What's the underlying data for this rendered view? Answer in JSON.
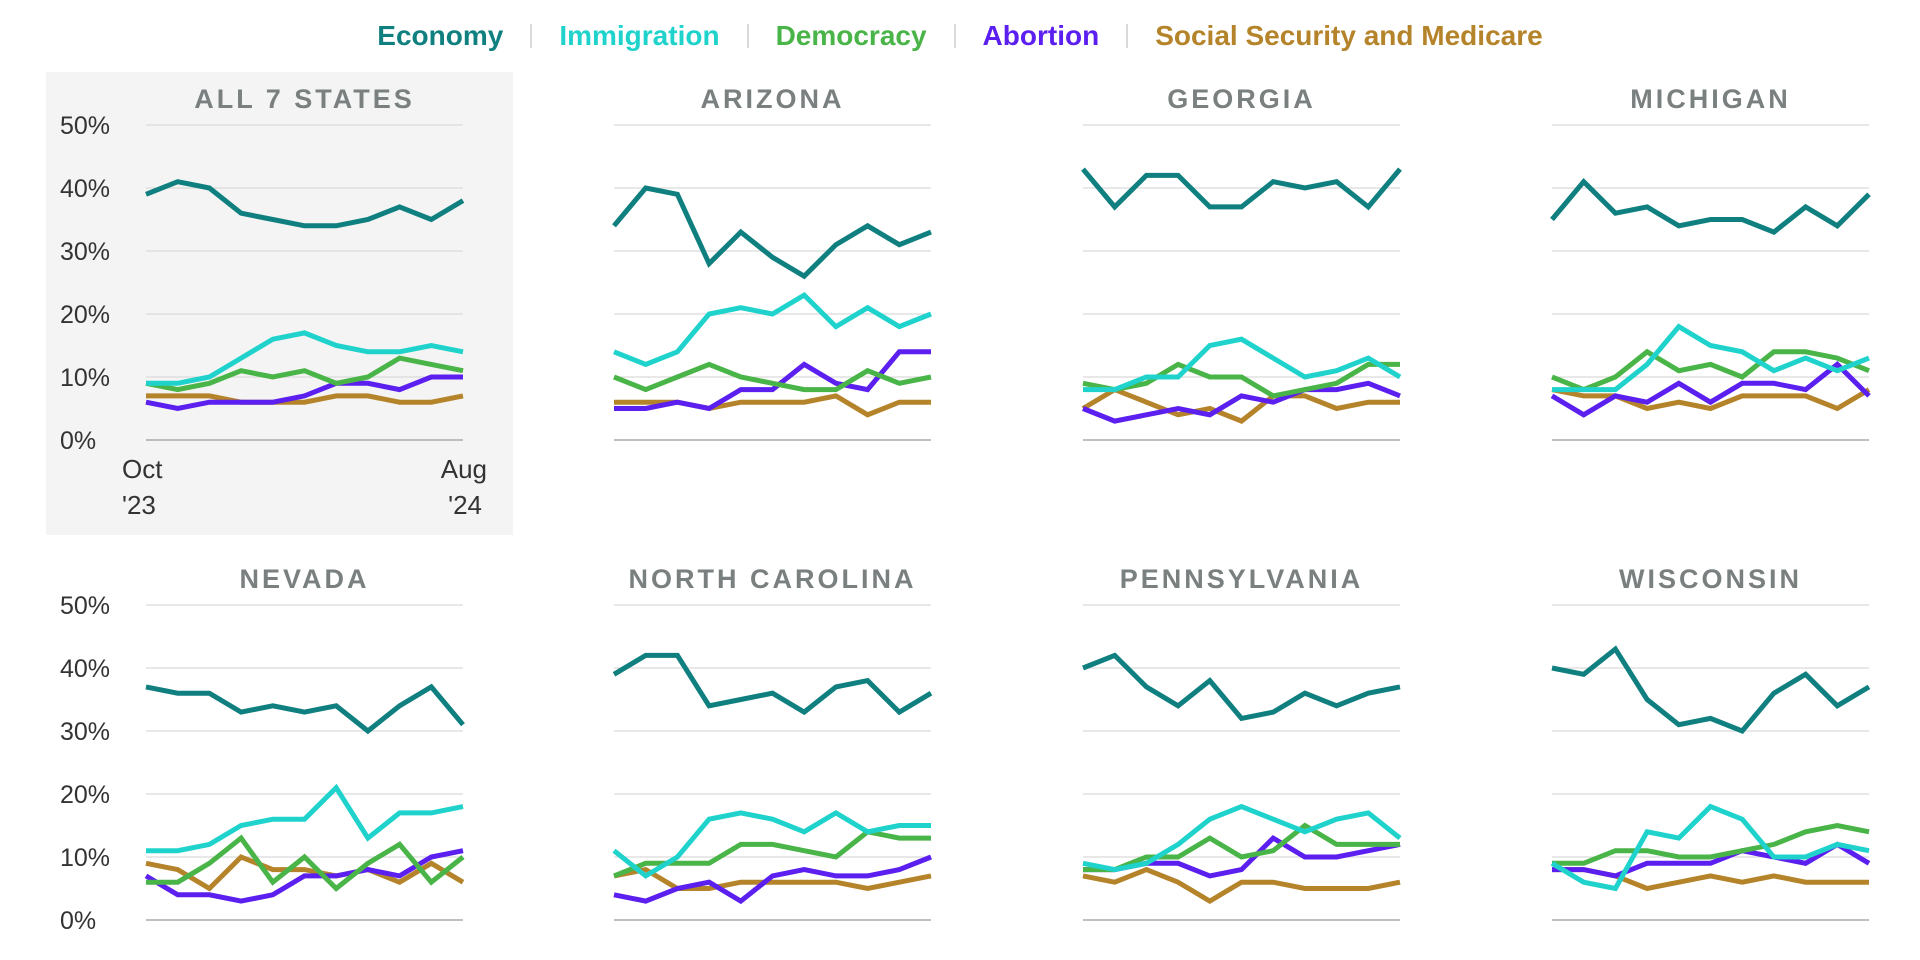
{
  "legend": [
    {
      "label": "Economy",
      "color": "#0f7f7f"
    },
    {
      "label": "Immigration",
      "color": "#1fd3cc"
    },
    {
      "label": "Democracy",
      "color": "#49b447"
    },
    {
      "label": "Abortion",
      "color": "#5b1ff0"
    },
    {
      "label": "Social Security and Medicare",
      "color": "#b5842a"
    }
  ],
  "axis": {
    "y_ticks": [
      "50%",
      "40%",
      "30%",
      "20%",
      "10%",
      "0%"
    ],
    "x_start": [
      "Oct",
      "'23"
    ],
    "x_end": [
      "Aug",
      "'24"
    ]
  },
  "chart_data": [
    {
      "type": "line",
      "title": "ALL 7 STATES",
      "highlighted": true,
      "ylim": [
        0,
        50
      ],
      "x": [
        "Oct '23",
        "",
        "",
        "",
        "",
        "",
        "",
        "",
        "",
        "",
        "Aug '24"
      ],
      "series": [
        {
          "name": "Economy",
          "values": [
            39,
            41,
            40,
            36,
            35,
            34,
            34,
            35,
            37,
            35,
            38
          ]
        },
        {
          "name": "Immigration",
          "values": [
            9,
            9,
            10,
            13,
            16,
            17,
            15,
            14,
            14,
            15,
            14
          ]
        },
        {
          "name": "Democracy",
          "values": [
            9,
            8,
            9,
            11,
            10,
            11,
            9,
            10,
            13,
            12,
            11
          ]
        },
        {
          "name": "Abortion",
          "values": [
            6,
            5,
            6,
            6,
            6,
            7,
            9,
            9,
            8,
            10,
            10
          ]
        },
        {
          "name": "Social Security and Medicare",
          "values": [
            7,
            7,
            7,
            6,
            6,
            6,
            7,
            7,
            6,
            6,
            7
          ]
        }
      ]
    },
    {
      "type": "line",
      "title": "ARIZONA",
      "ylim": [
        0,
        50
      ],
      "series": [
        {
          "name": "Economy",
          "values": [
            34,
            40,
            39,
            28,
            33,
            29,
            26,
            31,
            34,
            31,
            33
          ]
        },
        {
          "name": "Immigration",
          "values": [
            14,
            12,
            14,
            20,
            21,
            20,
            23,
            18,
            21,
            18,
            20
          ]
        },
        {
          "name": "Democracy",
          "values": [
            10,
            8,
            10,
            12,
            10,
            9,
            8,
            8,
            11,
            9,
            10
          ]
        },
        {
          "name": "Abortion",
          "values": [
            5,
            5,
            6,
            5,
            8,
            8,
            12,
            9,
            8,
            14,
            14
          ]
        },
        {
          "name": "Social Security and Medicare",
          "values": [
            6,
            6,
            6,
            5,
            6,
            6,
            6,
            7,
            4,
            6,
            6
          ]
        }
      ]
    },
    {
      "type": "line",
      "title": "GEORGIA",
      "ylim": [
        0,
        50
      ],
      "series": [
        {
          "name": "Economy",
          "values": [
            43,
            37,
            42,
            42,
            37,
            37,
            41,
            40,
            41,
            37,
            43
          ]
        },
        {
          "name": "Immigration",
          "values": [
            8,
            8,
            10,
            10,
            15,
            16,
            13,
            10,
            11,
            13,
            10
          ]
        },
        {
          "name": "Democracy",
          "values": [
            9,
            8,
            9,
            12,
            10,
            10,
            7,
            8,
            9,
            12,
            12
          ]
        },
        {
          "name": "Abortion",
          "values": [
            5,
            3,
            4,
            5,
            4,
            7,
            6,
            8,
            8,
            9,
            7
          ]
        },
        {
          "name": "Social Security and Medicare",
          "values": [
            5,
            8,
            6,
            4,
            5,
            3,
            7,
            7,
            5,
            6,
            6
          ]
        }
      ]
    },
    {
      "type": "line",
      "title": "MICHIGAN",
      "ylim": [
        0,
        50
      ],
      "series": [
        {
          "name": "Economy",
          "values": [
            35,
            41,
            36,
            37,
            34,
            35,
            35,
            33,
            37,
            34,
            39
          ]
        },
        {
          "name": "Immigration",
          "values": [
            8,
            8,
            8,
            12,
            18,
            15,
            14,
            11,
            13,
            11,
            13
          ]
        },
        {
          "name": "Democracy",
          "values": [
            10,
            8,
            10,
            14,
            11,
            12,
            10,
            14,
            14,
            13,
            11
          ]
        },
        {
          "name": "Abortion",
          "values": [
            7,
            4,
            7,
            6,
            9,
            6,
            9,
            9,
            8,
            12,
            7
          ]
        },
        {
          "name": "Social Security and Medicare",
          "values": [
            8,
            7,
            7,
            5,
            6,
            5,
            7,
            7,
            7,
            5,
            8
          ]
        }
      ]
    },
    {
      "type": "line",
      "title": "NEVADA",
      "ylim": [
        0,
        50
      ],
      "series": [
        {
          "name": "Economy",
          "values": [
            37,
            36,
            36,
            33,
            34,
            33,
            34,
            30,
            34,
            37,
            31
          ]
        },
        {
          "name": "Immigration",
          "values": [
            11,
            11,
            12,
            15,
            16,
            16,
            21,
            13,
            17,
            17,
            18
          ]
        },
        {
          "name": "Democracy",
          "values": [
            6,
            6,
            9,
            13,
            6,
            10,
            5,
            9,
            12,
            6,
            10
          ]
        },
        {
          "name": "Abortion",
          "values": [
            7,
            4,
            4,
            3,
            4,
            7,
            7,
            8,
            7,
            10,
            11
          ]
        },
        {
          "name": "Social Security and Medicare",
          "values": [
            9,
            8,
            5,
            10,
            8,
            8,
            7,
            8,
            6,
            9,
            6
          ]
        }
      ]
    },
    {
      "type": "line",
      "title": "NORTH CAROLINA",
      "ylim": [
        0,
        50
      ],
      "series": [
        {
          "name": "Economy",
          "values": [
            39,
            42,
            42,
            34,
            35,
            36,
            33,
            37,
            38,
            33,
            36
          ]
        },
        {
          "name": "Immigration",
          "values": [
            11,
            7,
            10,
            16,
            17,
            16,
            14,
            17,
            14,
            15,
            15
          ]
        },
        {
          "name": "Democracy",
          "values": [
            7,
            9,
            9,
            9,
            12,
            12,
            11,
            10,
            14,
            13,
            13
          ]
        },
        {
          "name": "Abortion",
          "values": [
            4,
            3,
            5,
            6,
            3,
            7,
            8,
            7,
            7,
            8,
            10
          ]
        },
        {
          "name": "Social Security and Medicare",
          "values": [
            7,
            8,
            5,
            5,
            6,
            6,
            6,
            6,
            5,
            6,
            7
          ]
        }
      ]
    },
    {
      "type": "line",
      "title": "PENNSYLVANIA",
      "ylim": [
        0,
        50
      ],
      "series": [
        {
          "name": "Economy",
          "values": [
            40,
            42,
            37,
            34,
            38,
            32,
            33,
            36,
            34,
            36,
            37
          ]
        },
        {
          "name": "Immigration",
          "values": [
            9,
            8,
            9,
            12,
            16,
            18,
            16,
            14,
            16,
            17,
            13
          ]
        },
        {
          "name": "Democracy",
          "values": [
            8,
            8,
            10,
            10,
            13,
            10,
            11,
            15,
            12,
            12,
            12
          ]
        },
        {
          "name": "Abortion",
          "values": [
            8,
            8,
            9,
            9,
            7,
            8,
            13,
            10,
            10,
            11,
            12
          ]
        },
        {
          "name": "Social Security and Medicare",
          "values": [
            7,
            6,
            8,
            6,
            3,
            6,
            6,
            5,
            5,
            5,
            6
          ]
        }
      ]
    },
    {
      "type": "line",
      "title": "WISCONSIN",
      "ylim": [
        0,
        50
      ],
      "series": [
        {
          "name": "Economy",
          "values": [
            40,
            39,
            43,
            35,
            31,
            32,
            30,
            36,
            39,
            34,
            37
          ]
        },
        {
          "name": "Immigration",
          "values": [
            9,
            6,
            5,
            14,
            13,
            18,
            16,
            10,
            10,
            12,
            11
          ]
        },
        {
          "name": "Democracy",
          "values": [
            9,
            9,
            11,
            11,
            10,
            10,
            11,
            12,
            14,
            15,
            14
          ]
        },
        {
          "name": "Abortion",
          "values": [
            8,
            8,
            7,
            9,
            9,
            9,
            11,
            10,
            9,
            12,
            9
          ]
        },
        {
          "name": "Social Security and Medicare",
          "values": [
            8,
            8,
            7,
            5,
            6,
            7,
            6,
            7,
            6,
            6,
            6
          ]
        }
      ]
    }
  ]
}
